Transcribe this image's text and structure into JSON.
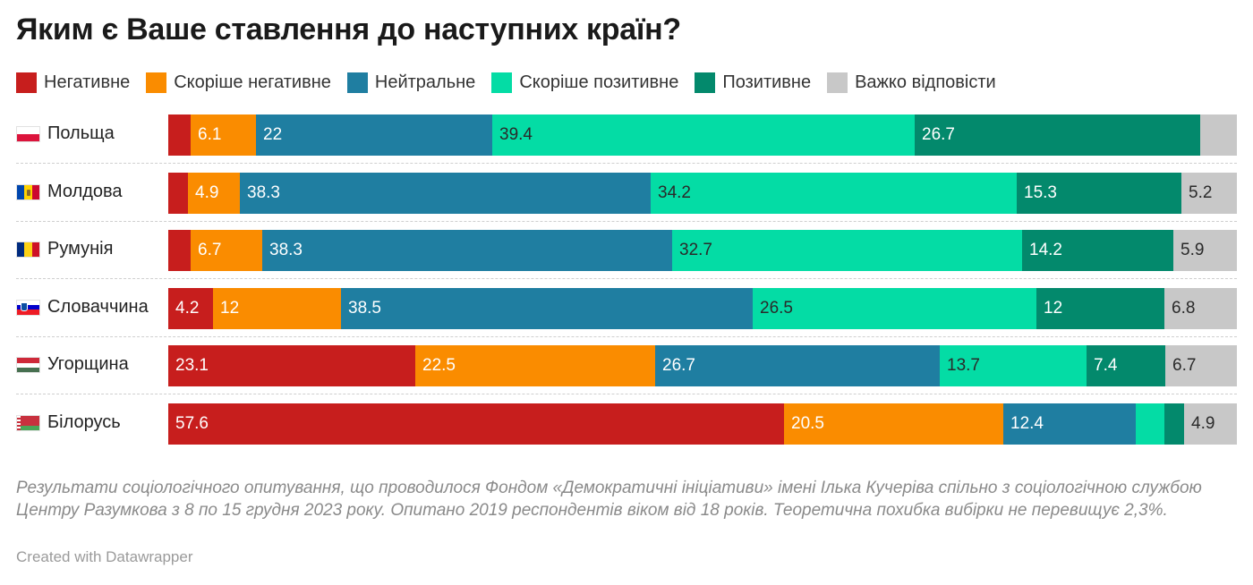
{
  "colors": {
    "negative": "#c71e1d",
    "rather_negative": "#fa8c00",
    "neutral": "#1f7ea1",
    "rather_positive": "#04dca5",
    "positive": "#03896c",
    "hard_to_say": "#c8c8c8"
  },
  "chart_data": {
    "type": "bar",
    "orientation": "horizontal",
    "stacked": true,
    "title": "Яким є Ваше ставлення до наступних країн?",
    "xlim": [
      0,
      100
    ],
    "legend_position": "top",
    "categories": [
      "Польща",
      "Молдова",
      "Румунія",
      "Словаччина",
      "Угорщина",
      "Білорусь"
    ],
    "flags": [
      "poland-flag-icon",
      "moldova-flag-icon",
      "romania-flag-icon",
      "slovenia-flag-icon",
      "hungary-flag-icon",
      "belarus-flag-icon"
    ],
    "series": [
      {
        "name": "Негативне",
        "color": "#c71e1d",
        "values": [
          2.1,
          1.8,
          2.1,
          4.2,
          23.1,
          57.6
        ]
      },
      {
        "name": "Скоріше негативне",
        "color": "#fa8c00",
        "values": [
          6.1,
          4.9,
          6.7,
          12,
          22.5,
          20.5
        ]
      },
      {
        "name": "Нейтральне",
        "color": "#1f7ea1",
        "values": [
          22,
          38.3,
          38.3,
          38.5,
          26.7,
          12.4
        ]
      },
      {
        "name": "Скоріше позитивне",
        "color": "#04dca5",
        "values": [
          39.4,
          34.2,
          32.7,
          26.5,
          13.7,
          2.7
        ]
      },
      {
        "name": "Позитивне",
        "color": "#03896c",
        "values": [
          26.7,
          15.3,
          14.2,
          12,
          7.4,
          1.9
        ]
      },
      {
        "name": "Важко відповісти",
        "color": "#c8c8c8",
        "values": [
          3.4,
          5.2,
          5.9,
          6.8,
          6.7,
          4.9
        ]
      }
    ],
    "shown_labels": [
      [
        null,
        "6.1",
        "22",
        "39.4",
        "26.7",
        null
      ],
      [
        null,
        "4.9",
        "38.3",
        "34.2",
        "15.3",
        "5.2"
      ],
      [
        null,
        "6.7",
        "38.3",
        "32.7",
        "14.2",
        "5.9"
      ],
      [
        "4.2",
        "12",
        "38.5",
        "26.5",
        "12",
        "6.8"
      ],
      [
        "23.1",
        "22.5",
        "26.7",
        "13.7",
        "7.4",
        "6.7"
      ],
      [
        "57.6",
        "20.5",
        "12.4",
        null,
        null,
        "4.9"
      ]
    ]
  },
  "footnote": "Результати соціологічного опитування, що проводилося Фондом «Демократичні ініціативи» імені Ілька Кучеріва спільно з соціологічною службою Центру Разумкова з 8 по 15 грудня 2023 року. Опитано 2019 респондентів віком від 18 років. Теоретична похибка вибірки не перевищує 2,3%.",
  "credit": "Created with Datawrapper"
}
